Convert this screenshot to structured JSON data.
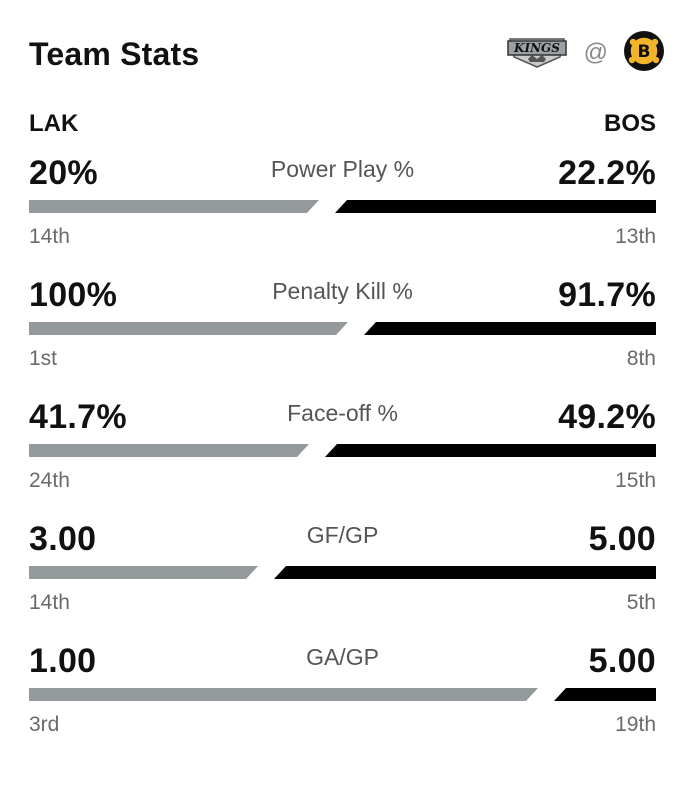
{
  "header": {
    "title": "Team Stats",
    "away_logo_text": "KINGS",
    "at_symbol": "@",
    "home_logo_text": "B"
  },
  "teams": {
    "away": "LAK",
    "home": "BOS"
  },
  "colors": {
    "away_bar": "#949a9c",
    "home_bar": "#000000",
    "kings_logo": "#9aa0a4",
    "bruins_gold": "#f4b42a"
  },
  "stats": [
    {
      "label": "Power Play %",
      "away_value": "20%",
      "home_value": "22.2%",
      "away_rank": "14th",
      "home_rank": "13th",
      "away_share": 0.474
    },
    {
      "label": "Penalty Kill %",
      "away_value": "100%",
      "home_value": "91.7%",
      "away_rank": "1st",
      "home_rank": "8th",
      "away_share": 0.522
    },
    {
      "label": "Face-off %",
      "away_value": "41.7%",
      "home_value": "49.2%",
      "away_rank": "24th",
      "home_rank": "15th",
      "away_share": 0.459
    },
    {
      "label": "GF/GP",
      "away_value": "3.00",
      "home_value": "5.00",
      "away_rank": "14th",
      "home_rank": "5th",
      "away_share": 0.375
    },
    {
      "label": "GA/GP",
      "away_value": "1.00",
      "home_value": "5.00",
      "away_rank": "3rd",
      "home_rank": "19th",
      "away_share": 0.833
    }
  ]
}
